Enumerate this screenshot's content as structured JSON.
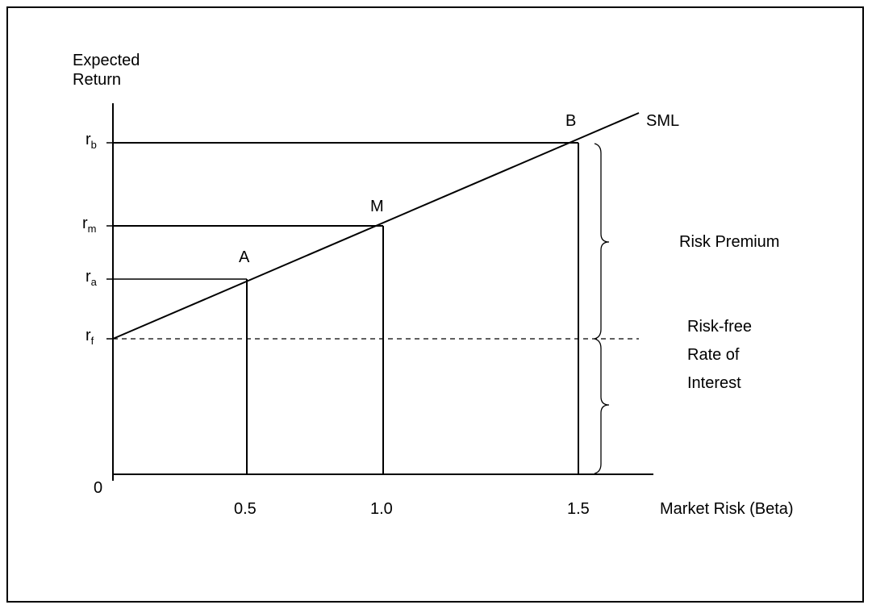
{
  "diagram": {
    "y_axis_label_line1": "Expected",
    "y_axis_label_line2": "Return",
    "x_axis_label": "Market Risk (Beta)",
    "origin_label": "0",
    "line_label": "SML",
    "y_ticks": [
      {
        "base": "r",
        "sub": "b"
      },
      {
        "base": "r",
        "sub": "m"
      },
      {
        "base": "r",
        "sub": "a"
      },
      {
        "base": "r",
        "sub": "f"
      }
    ],
    "x_ticks": [
      "0.5",
      "1.0",
      "1.5"
    ],
    "points": [
      "A",
      "M",
      "B"
    ],
    "brace_labels": {
      "risk_premium": "Risk Premium",
      "risk_free_line1": "Risk-free",
      "risk_free_line2": "Rate of",
      "risk_free_line3": "Interest"
    }
  }
}
